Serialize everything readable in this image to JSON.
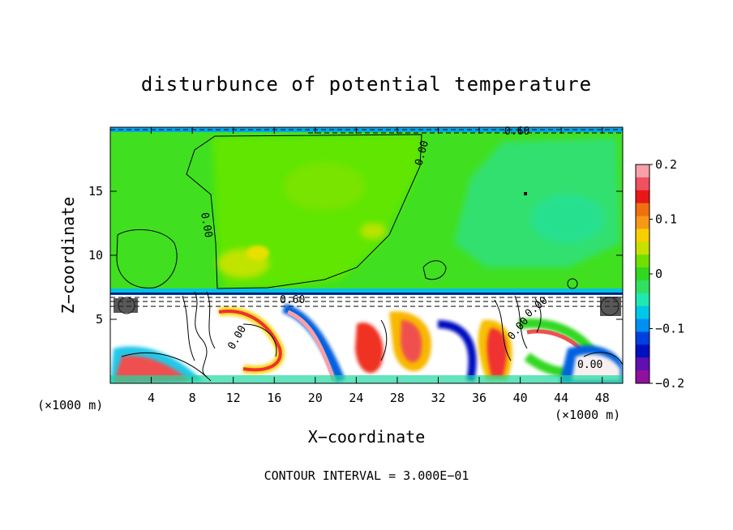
{
  "chart_data": {
    "type": "heatmap",
    "title": "disturbunce of potential temperature",
    "xlabel": "X−coordinate",
    "ylabel": "Z−coordinate",
    "x_unit_label_left": "(×1000 m)",
    "x_unit_label_right": "(×1000 m)",
    "xlim": [
      0,
      50
    ],
    "ylim": [
      0,
      20
    ],
    "x_ticks": [
      4,
      8,
      12,
      16,
      20,
      24,
      28,
      32,
      36,
      40,
      44,
      48
    ],
    "x_tick_labels": [
      "4",
      "8",
      "12",
      "16",
      "20",
      "24",
      "28",
      "32",
      "36",
      "40",
      "44",
      "48"
    ],
    "y_ticks": [
      5,
      10,
      15
    ],
    "y_tick_labels": [
      "5",
      "10",
      "15"
    ],
    "colorbar": {
      "range": [
        -0.2,
        0.2
      ],
      "ticks": [
        0.2,
        0.1,
        0,
        -0.1,
        -0.2
      ],
      "tick_labels": [
        "0.2",
        "0.1",
        "0",
        "−0.1",
        "−0.2"
      ],
      "colors": [
        "#f8a0a8",
        "#f05060",
        "#e81818",
        "#f07010",
        "#f89818",
        "#f8d000",
        "#c8e000",
        "#70e000",
        "#30d820",
        "#30e060",
        "#20e8b0",
        "#00c8e8",
        "#0090f0",
        "#0040e0",
        "#0010c0",
        "#6010b0",
        "#9010a0"
      ]
    },
    "contour_labels": [
      "0.00",
      "0.00",
      "0.00",
      "0.60",
      "0.60",
      "0.00",
      "0.00",
      "0.00"
    ],
    "contour_interval_text": "CONTOUR INTERVAL = 3.000E−01"
  }
}
